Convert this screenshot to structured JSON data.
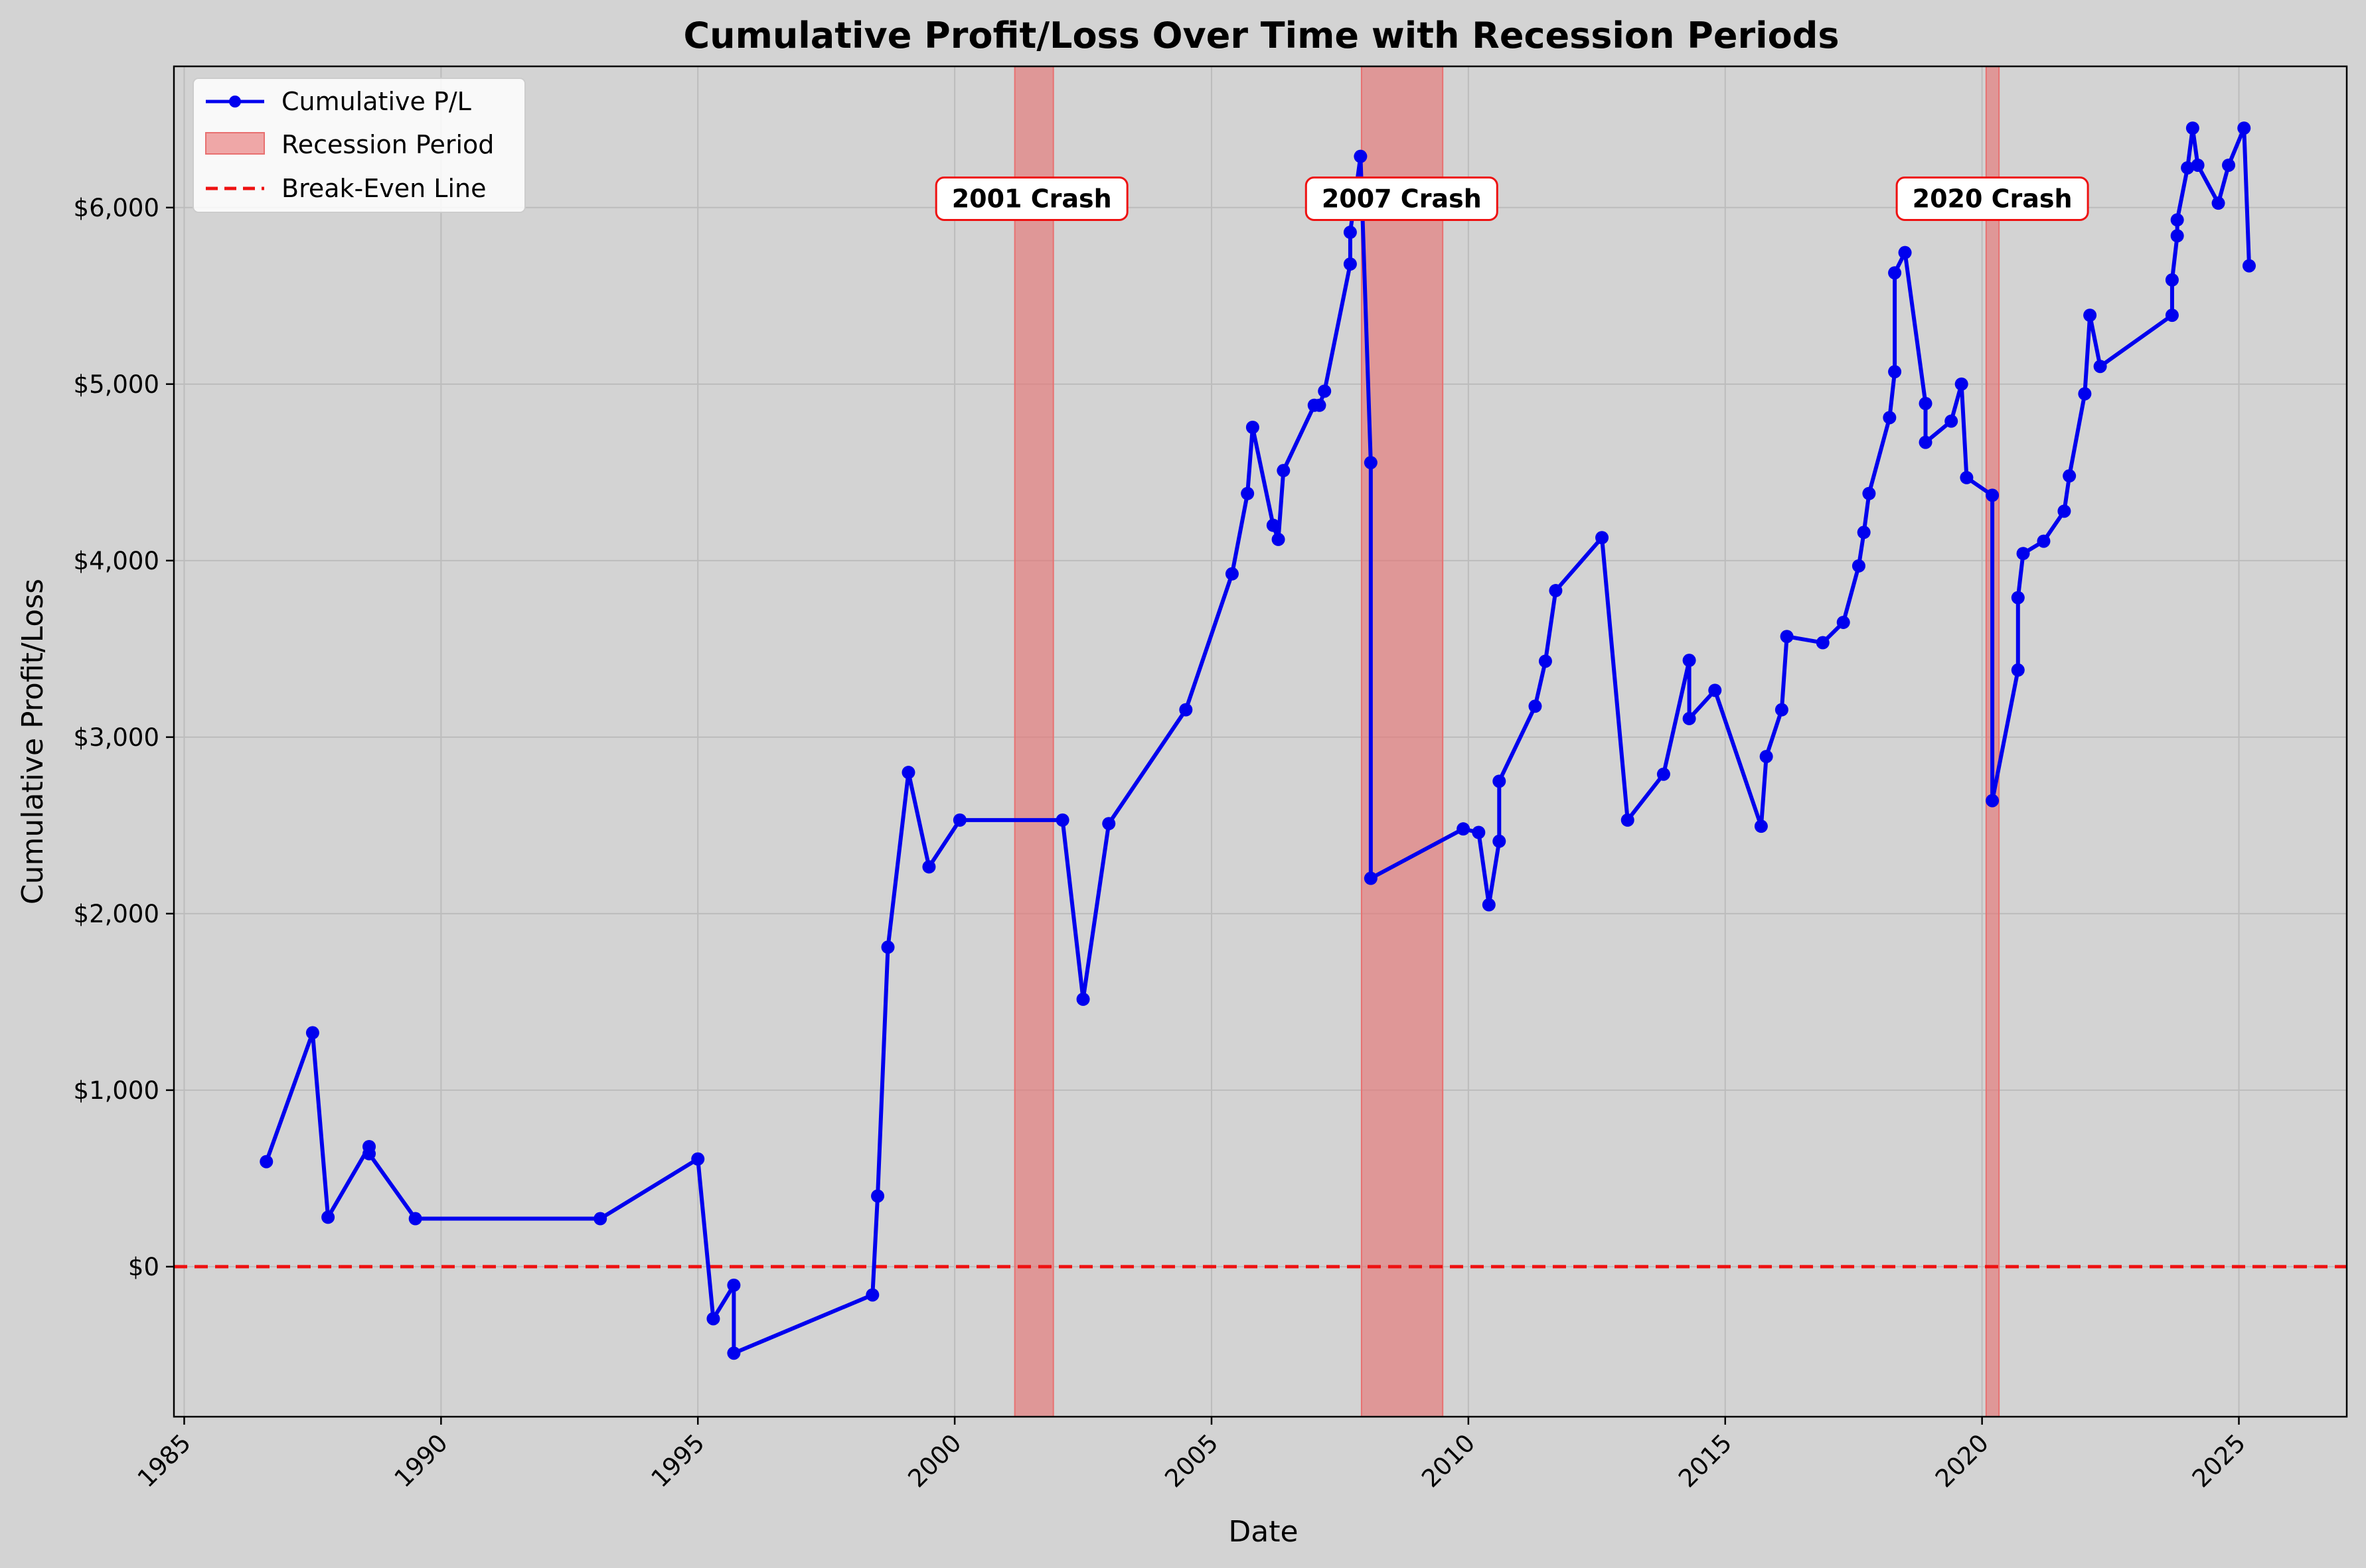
{
  "colors": {
    "background": "#d3d3d3",
    "line": "#0000ee",
    "recession": "#e87070",
    "breakeven": "#ee1111",
    "grid": "#bcbcbc"
  },
  "chart_data": {
    "type": "line",
    "title": "Cumulative Profit/Loss Over Time with Recession Periods",
    "xlabel": "Date",
    "ylabel": "Cumulative Profit/Loss",
    "xlim": [
      1984.8,
      2027.1
    ],
    "ylim": [
      -850,
      6800
    ],
    "x_ticks": [
      1985,
      1990,
      1995,
      2000,
      2005,
      2010,
      2015,
      2020,
      2025
    ],
    "x_tick_labels": [
      "1985",
      "1990",
      "1995",
      "2000",
      "2005",
      "2010",
      "2015",
      "2020",
      "2025"
    ],
    "y_ticks": [
      0,
      1000,
      2000,
      3000,
      4000,
      5000,
      6000
    ],
    "y_tick_labels": [
      "$0",
      "$1,000",
      "$2,000",
      "$3,000",
      "$4,000",
      "$5,000",
      "$6,000"
    ],
    "grid": true,
    "legend_position": "top-left",
    "legend": [
      "Cumulative P/L",
      "Recession Period",
      "Break-Even Line"
    ],
    "breakeven_y": 0,
    "recessions": [
      {
        "start": 2001.17,
        "end": 2001.92
      },
      {
        "start": 2007.92,
        "end": 2009.5
      },
      {
        "start": 2020.08,
        "end": 2020.33
      }
    ],
    "annotations": [
      {
        "text": "2001 Crash",
        "x": 2001.5,
        "y": 6050
      },
      {
        "text": "2007 Crash",
        "x": 2008.7,
        "y": 6050
      },
      {
        "text": "2020 Crash",
        "x": 2020.2,
        "y": 6050
      }
    ],
    "series": [
      {
        "name": "Cumulative P/L",
        "points": [
          [
            1986.6,
            595
          ],
          [
            1987.5,
            1325
          ],
          [
            1987.8,
            280
          ],
          [
            1988.6,
            680
          ],
          [
            1988.6,
            640
          ],
          [
            1989.5,
            272
          ],
          [
            1993.1,
            272
          ],
          [
            1995.0,
            610
          ],
          [
            1995.3,
            -295
          ],
          [
            1995.7,
            -105
          ],
          [
            1995.7,
            -490
          ],
          [
            1998.4,
            -160
          ],
          [
            1998.5,
            400
          ],
          [
            1998.7,
            1810
          ],
          [
            1999.1,
            2800
          ],
          [
            1999.5,
            2265
          ],
          [
            2000.1,
            2530
          ],
          [
            2002.1,
            2530
          ],
          [
            2002.5,
            1515
          ],
          [
            2003.0,
            2510
          ],
          [
            2004.5,
            3155
          ],
          [
            2005.4,
            3925
          ],
          [
            2005.7,
            4380
          ],
          [
            2005.8,
            4755
          ],
          [
            2006.2,
            4200
          ],
          [
            2006.3,
            4120
          ],
          [
            2006.4,
            4510
          ],
          [
            2007.0,
            4880
          ],
          [
            2007.1,
            4880
          ],
          [
            2007.2,
            4960
          ],
          [
            2007.7,
            5680
          ],
          [
            2007.7,
            5860
          ],
          [
            2007.9,
            6290
          ],
          [
            2008.1,
            4555
          ],
          [
            2008.1,
            2200
          ],
          [
            2009.9,
            2480
          ],
          [
            2010.2,
            2460
          ],
          [
            2010.4,
            2050
          ],
          [
            2010.6,
            2410
          ],
          [
            2010.6,
            2750
          ],
          [
            2011.3,
            3175
          ],
          [
            2011.5,
            3430
          ],
          [
            2011.7,
            3830
          ],
          [
            2012.6,
            4130
          ],
          [
            2013.1,
            2530
          ],
          [
            2013.8,
            2790
          ],
          [
            2014.3,
            3435
          ],
          [
            2014.3,
            3105
          ],
          [
            2014.8,
            3265
          ],
          [
            2015.7,
            2495
          ],
          [
            2015.8,
            2890
          ],
          [
            2016.1,
            3155
          ],
          [
            2016.2,
            3570
          ],
          [
            2016.9,
            3535
          ],
          [
            2017.3,
            3650
          ],
          [
            2017.6,
            3970
          ],
          [
            2017.7,
            4160
          ],
          [
            2017.8,
            4380
          ],
          [
            2018.2,
            4810
          ],
          [
            2018.3,
            5070
          ],
          [
            2018.3,
            5630
          ],
          [
            2018.5,
            5745
          ],
          [
            2018.9,
            4890
          ],
          [
            2018.9,
            4670
          ],
          [
            2019.4,
            4790
          ],
          [
            2019.6,
            5000
          ],
          [
            2019.7,
            4470
          ],
          [
            2020.2,
            4370
          ],
          [
            2020.2,
            2640
          ],
          [
            2020.7,
            3380
          ],
          [
            2020.7,
            3790
          ],
          [
            2020.8,
            4040
          ],
          [
            2021.2,
            4110
          ],
          [
            2021.6,
            4280
          ],
          [
            2021.7,
            4480
          ],
          [
            2022.0,
            4945
          ],
          [
            2022.1,
            5390
          ],
          [
            2022.3,
            5100
          ],
          [
            2023.7,
            5390
          ],
          [
            2023.7,
            5590
          ],
          [
            2023.8,
            5840
          ],
          [
            2023.8,
            5930
          ],
          [
            2024.0,
            6225
          ],
          [
            2024.1,
            6450
          ],
          [
            2024.2,
            6240
          ],
          [
            2024.6,
            6025
          ],
          [
            2024.8,
            6240
          ],
          [
            2025.1,
            6450
          ],
          [
            2025.2,
            5670
          ]
        ]
      }
    ]
  }
}
